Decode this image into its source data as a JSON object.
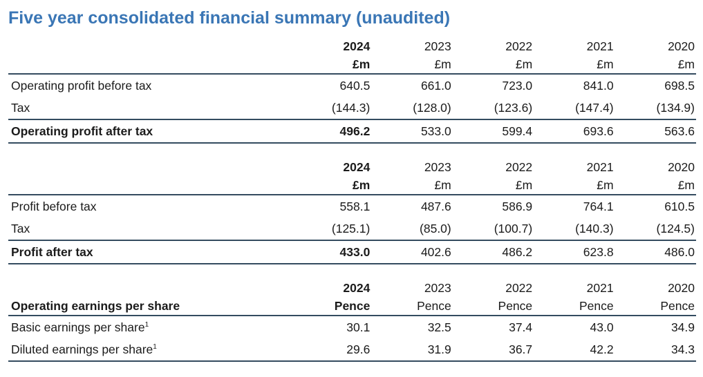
{
  "page_title": "Five year consolidated financial summary (unaudited)",
  "colors": {
    "title_blue": "#3a76b5",
    "rule": "#334b5f",
    "text": "#1b1b1b"
  },
  "tables": [
    {
      "name": "operating-profit-section",
      "years": [
        "2024",
        "2023",
        "2022",
        "2021",
        "2020"
      ],
      "unit_row_label": "",
      "units": [
        "£m",
        "£m",
        "£m",
        "£m",
        "£m"
      ],
      "rows": [
        {
          "label": "Operating profit before tax",
          "footnote": "",
          "emphasis": false,
          "values": [
            "640.5",
            "661.0",
            "723.0",
            "841.0",
            "698.5"
          ]
        },
        {
          "label": "Tax",
          "footnote": "",
          "emphasis": false,
          "values": [
            "(144.3)",
            "(128.0)",
            "(123.6)",
            "(147.4)",
            "(134.9)"
          ]
        },
        {
          "label": "Operating profit after tax",
          "footnote": "",
          "emphasis": true,
          "values": [
            "496.2",
            "533.0",
            "599.4",
            "693.6",
            "563.6"
          ]
        }
      ]
    },
    {
      "name": "profit-section",
      "years": [
        "2024",
        "2023",
        "2022",
        "2021",
        "2020"
      ],
      "unit_row_label": "",
      "units": [
        "£m",
        "£m",
        "£m",
        "£m",
        "£m"
      ],
      "rows": [
        {
          "label": "Profit before tax",
          "footnote": "",
          "emphasis": false,
          "values": [
            "558.1",
            "487.6",
            "586.9",
            "764.1",
            "610.5"
          ]
        },
        {
          "label": "Tax",
          "footnote": "",
          "emphasis": false,
          "values": [
            "(125.1)",
            "(85.0)",
            "(100.7)",
            "(140.3)",
            "(124.5)"
          ]
        },
        {
          "label": "Profit after tax",
          "footnote": "",
          "emphasis": true,
          "values": [
            "433.0",
            "402.6",
            "486.2",
            "623.8",
            "486.0"
          ]
        }
      ]
    },
    {
      "name": "earnings-per-share-section",
      "years": [
        "2024",
        "2023",
        "2022",
        "2021",
        "2020"
      ],
      "unit_row_label": "Operating earnings per share",
      "units": [
        "Pence",
        "Pence",
        "Pence",
        "Pence",
        "Pence"
      ],
      "rows": [
        {
          "label": "Basic earnings per share",
          "footnote": "1",
          "emphasis": false,
          "values": [
            "30.1",
            "32.5",
            "37.4",
            "43.0",
            "34.9"
          ]
        },
        {
          "label": "Diluted earnings per share",
          "footnote": "1",
          "emphasis": false,
          "values": [
            "29.6",
            "31.9",
            "36.7",
            "42.2",
            "34.3"
          ]
        }
      ]
    }
  ]
}
